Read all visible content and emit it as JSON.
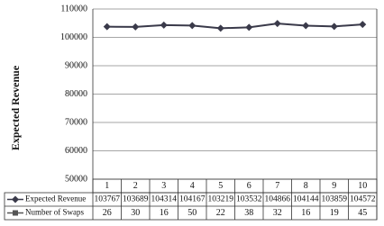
{
  "chart_data": {
    "type": "line",
    "y_label": "Expected Revenue",
    "categories": [
      "1",
      "2",
      "3",
      "4",
      "5",
      "6",
      "7",
      "8",
      "9",
      "10"
    ],
    "series": [
      {
        "name": "Expected Revenue",
        "color": "#3a3a4a",
        "marker": "diamond",
        "values": [
          103767,
          103689,
          104314,
          104167,
          103219,
          103532,
          104866,
          104144,
          103859,
          104572
        ]
      },
      {
        "name": "Number of Swaps",
        "color": "#555555",
        "marker": "square",
        "plotted": false,
        "values": [
          26,
          30,
          16,
          50,
          22,
          38,
          32,
          16,
          19,
          45
        ]
      }
    ],
    "ylim": [
      50000,
      110000
    ],
    "yticks": [
      50000,
      60000,
      70000,
      80000,
      90000,
      100000,
      110000
    ],
    "grid": true,
    "data_table": true
  }
}
